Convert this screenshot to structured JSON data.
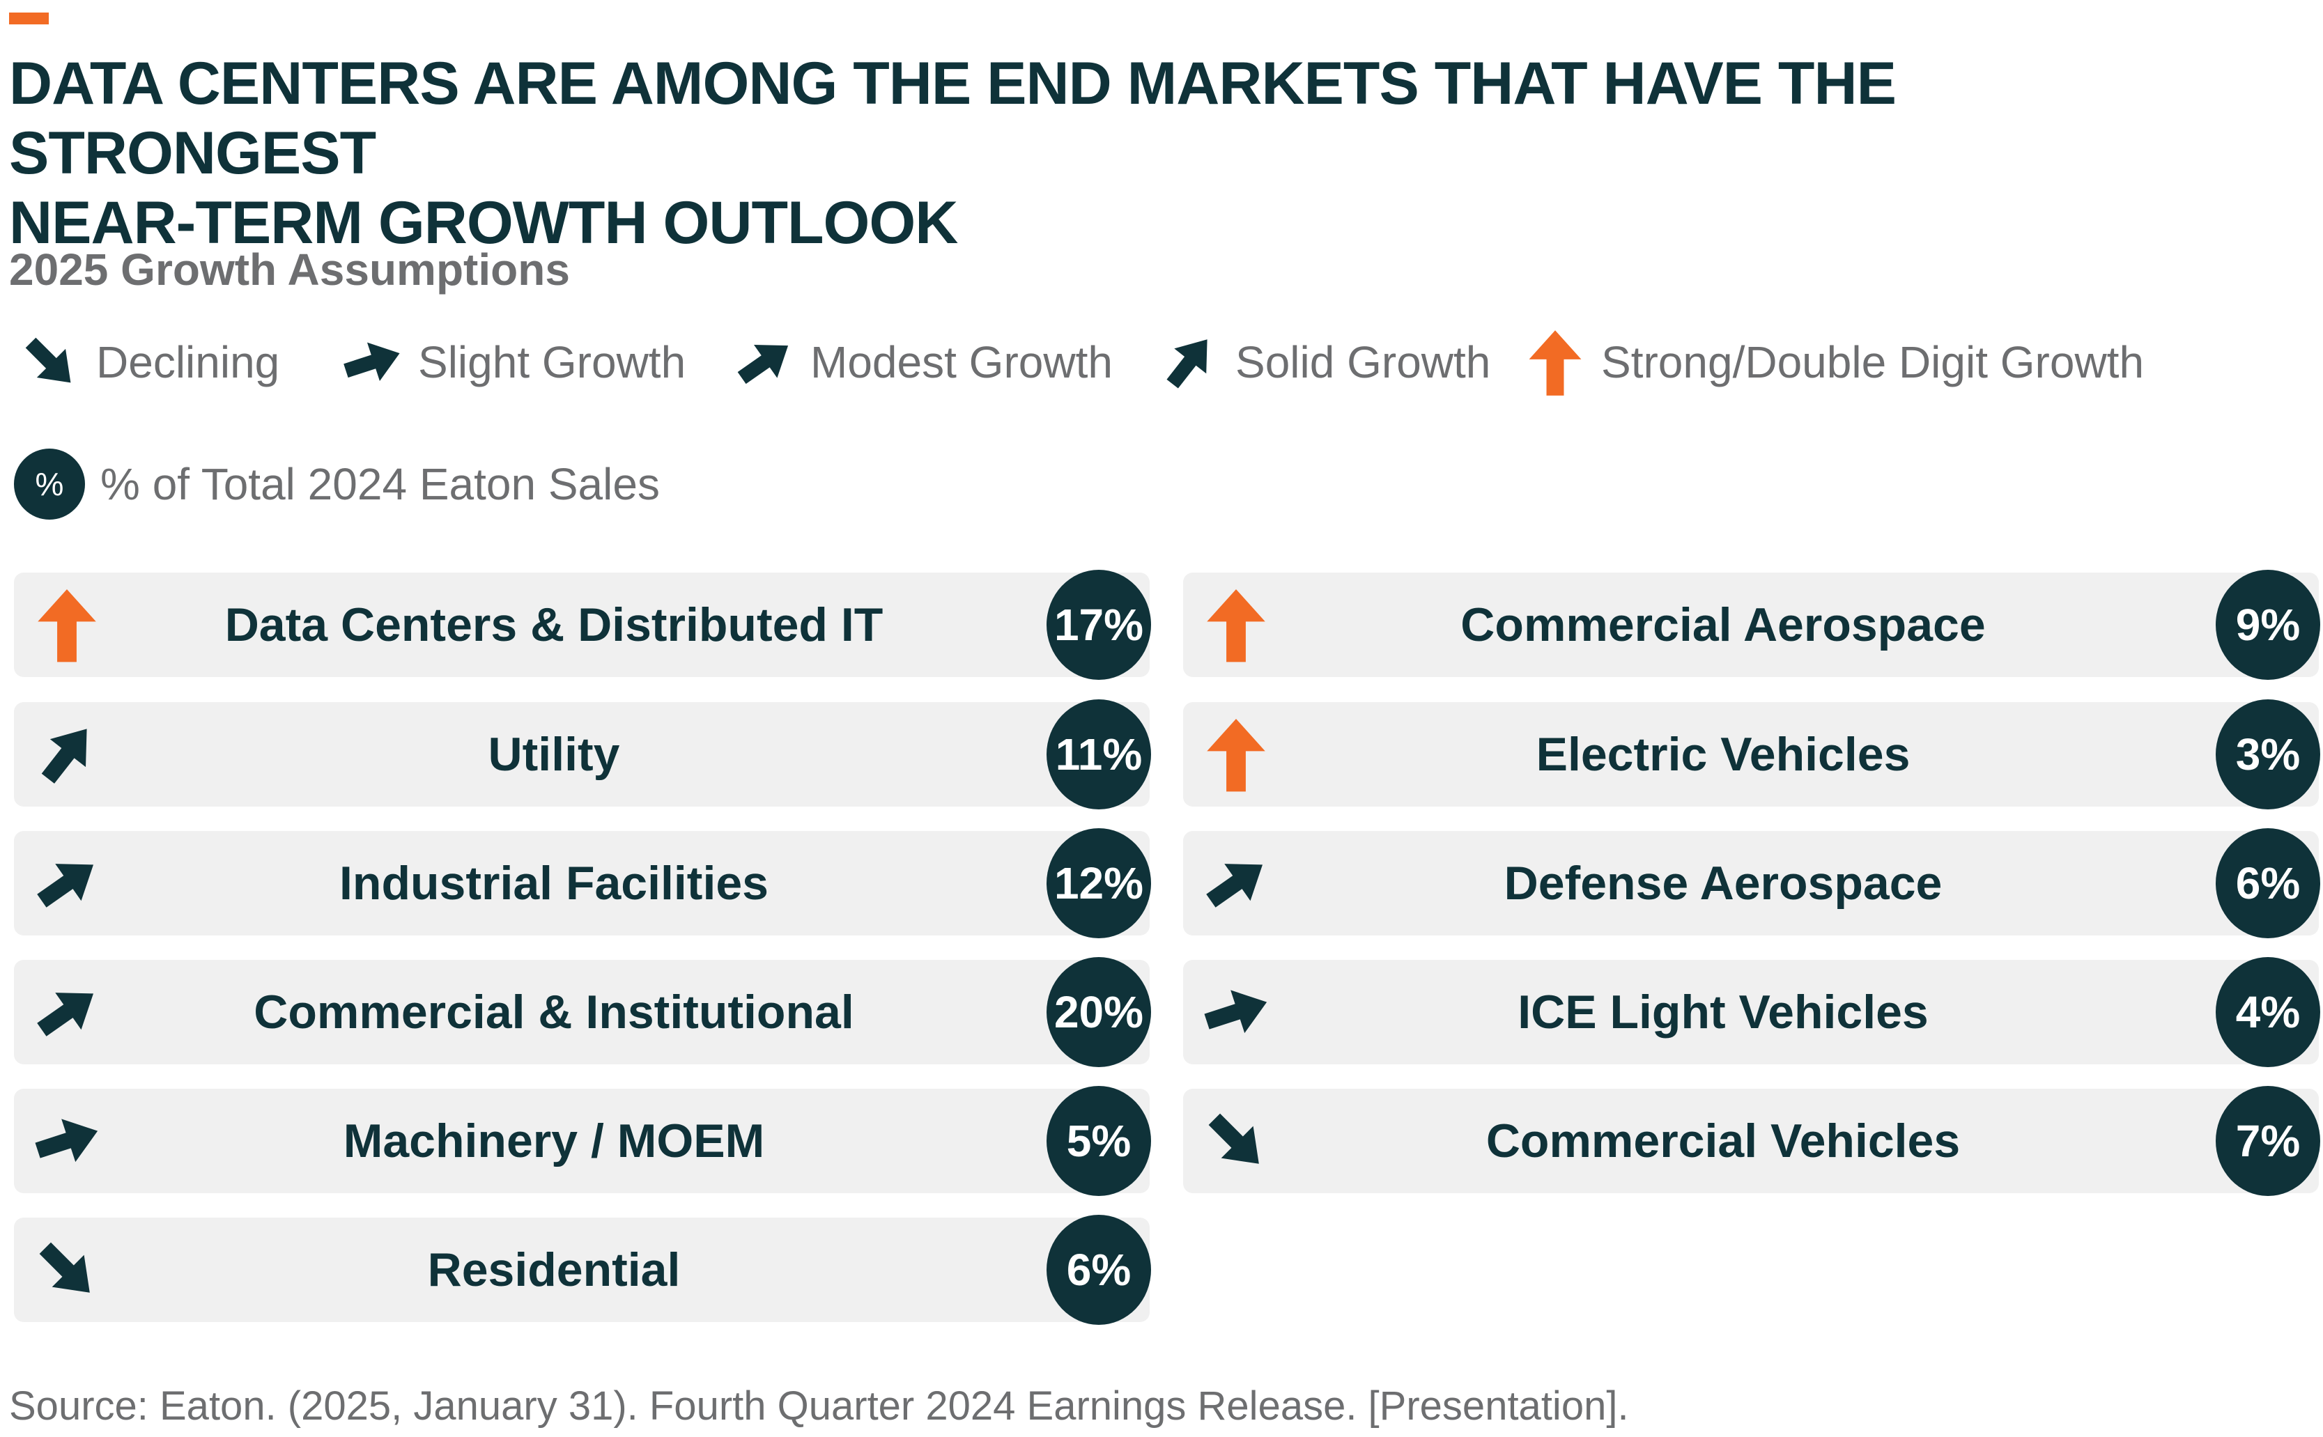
{
  "title_lines": [
    "DATA CENTERS ARE AMONG THE END MARKETS THAT HAVE THE STRONGEST",
    "NEAR-TERM GROWTH OUTLOOK"
  ],
  "subtitle": "2025 Growth Assumptions",
  "legend": [
    {
      "icon": "arrow-down-right-icon",
      "label": "Declining"
    },
    {
      "icon": "arrow-right-slight-icon",
      "label": "Slight Growth"
    },
    {
      "icon": "arrow-up-right-modest-icon",
      "label": "Modest Growth"
    },
    {
      "icon": "arrow-up-right-solid-icon",
      "label": "Solid Growth"
    },
    {
      "icon": "arrow-up-strong-icon",
      "label": "Strong/Double Digit Growth"
    }
  ],
  "pct_legend": {
    "symbol": "%",
    "label": "% of Total 2024 Eaton Sales"
  },
  "colors": {
    "dark": "#0f3239",
    "accent": "#f26b24",
    "gray_text": "#6d6e70",
    "row_bg": "#f0f0f0"
  },
  "markets_left": [
    {
      "label": "Data Centers & Distributed IT",
      "pct": "17%",
      "growth": "Strong/Double Digit Growth",
      "icon": "arrow-up-strong-icon"
    },
    {
      "label": "Utility",
      "pct": "11%",
      "growth": "Solid Growth",
      "icon": "arrow-up-right-solid-icon"
    },
    {
      "label": "Industrial Facilities",
      "pct": "12%",
      "growth": "Modest Growth",
      "icon": "arrow-up-right-modest-icon"
    },
    {
      "label": "Commercial & Institutional",
      "pct": "20%",
      "growth": "Modest Growth",
      "icon": "arrow-up-right-modest-icon"
    },
    {
      "label": "Machinery / MOEM",
      "pct": "5%",
      "growth": "Slight Growth",
      "icon": "arrow-right-slight-icon"
    },
    {
      "label": "Residential",
      "pct": "6%",
      "growth": "Declining",
      "icon": "arrow-down-right-icon"
    }
  ],
  "markets_right": [
    {
      "label": "Commercial Aerospace",
      "pct": "9%",
      "growth": "Strong/Double Digit Growth",
      "icon": "arrow-up-strong-icon"
    },
    {
      "label": "Electric Vehicles",
      "pct": "3%",
      "growth": "Strong/Double Digit Growth",
      "icon": "arrow-up-strong-icon"
    },
    {
      "label": "Defense Aerospace",
      "pct": "6%",
      "growth": "Modest Growth",
      "icon": "arrow-up-right-modest-icon"
    },
    {
      "label": "ICE Light Vehicles",
      "pct": "4%",
      "growth": "Slight Growth",
      "icon": "arrow-right-slight-icon"
    },
    {
      "label": "Commercial Vehicles",
      "pct": "7%",
      "growth": "Declining",
      "icon": "arrow-down-right-icon"
    }
  ],
  "source": "Source: Eaton. (2025, January 31). Fourth Quarter 2024 Earnings Release. [Presentation]."
}
